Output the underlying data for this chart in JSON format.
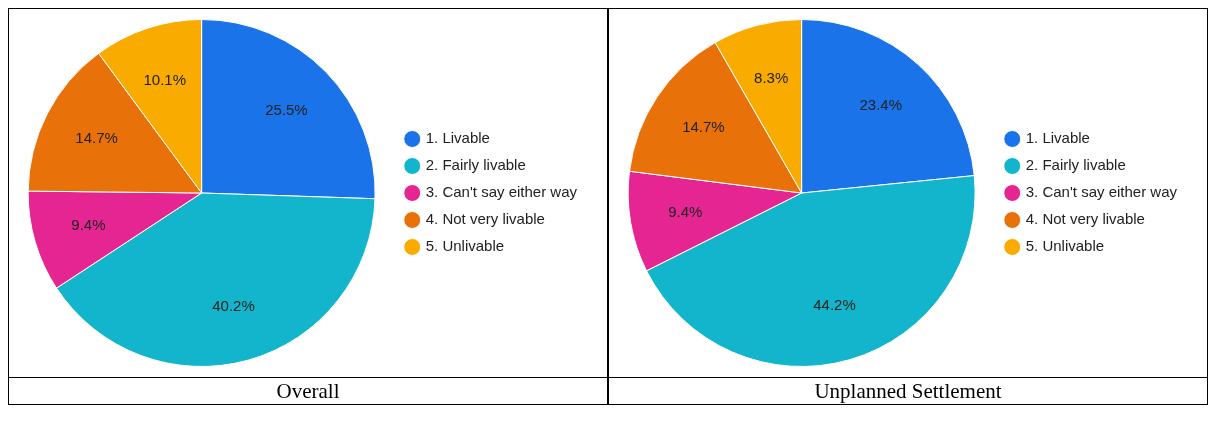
{
  "chart_data": [
    {
      "type": "pie",
      "title": "Overall",
      "categories": [
        "1. Livable",
        "2. Fairly livable",
        "3. Can't say either way",
        "4. Not very livable",
        "5. Unlivable"
      ],
      "values": [
        25.5,
        40.2,
        9.4,
        14.7,
        10.1
      ],
      "value_labels": [
        "25.5%",
        "40.2%",
        "9.4%",
        "14.7%",
        "10.1%"
      ],
      "colors": [
        "#1a73e8",
        "#12b5cb",
        "#e52592",
        "#e8710a",
        "#f9ab00"
      ],
      "legend": "right"
    },
    {
      "type": "pie",
      "title": "Unplanned Settlement",
      "categories": [
        "1. Livable",
        "2. Fairly livable",
        "3. Can't say either way",
        "4. Not very livable",
        "5. Unlivable"
      ],
      "values": [
        23.4,
        44.2,
        9.4,
        14.7,
        8.3
      ],
      "value_labels": [
        "23.4%",
        "44.2%",
        "9.4%",
        "14.7%",
        "8.3%"
      ],
      "colors": [
        "#1a73e8",
        "#12b5cb",
        "#e52592",
        "#e8710a",
        "#f9ab00"
      ],
      "legend": "right"
    }
  ]
}
